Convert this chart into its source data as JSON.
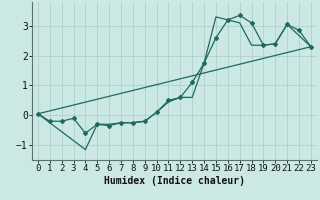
{
  "xlabel": "Humidex (Indice chaleur)",
  "background_color": "#cce8e4",
  "grid_color": "#aaccca",
  "line_color": "#1a6b60",
  "xlim": [
    -0.5,
    23.5
  ],
  "ylim": [
    -1.5,
    3.8
  ],
  "yticks": [
    -1,
    0,
    1,
    2,
    3
  ],
  "xticks": [
    0,
    1,
    2,
    3,
    4,
    5,
    6,
    7,
    8,
    9,
    10,
    11,
    12,
    13,
    14,
    15,
    16,
    17,
    18,
    19,
    20,
    21,
    22,
    23
  ],
  "series1_x": [
    0,
    1,
    2,
    3,
    4,
    5,
    6,
    7,
    8,
    9,
    10,
    11,
    12,
    13,
    14,
    15,
    16,
    17,
    18,
    19,
    20,
    21,
    22,
    23
  ],
  "series1_y": [
    0.05,
    -0.2,
    -0.2,
    -0.1,
    -0.6,
    -0.3,
    -0.35,
    -0.25,
    -0.25,
    -0.2,
    0.1,
    0.5,
    0.6,
    1.1,
    1.75,
    2.6,
    3.2,
    3.35,
    3.1,
    2.35,
    2.4,
    3.05,
    2.85,
    2.3
  ],
  "series2_x": [
    0,
    4,
    5,
    6,
    7,
    8,
    9,
    10,
    11,
    12,
    13,
    14,
    15,
    17,
    18,
    19,
    20,
    21,
    23
  ],
  "series2_y": [
    0.05,
    -1.15,
    -0.3,
    -0.3,
    -0.25,
    -0.25,
    -0.2,
    0.1,
    0.45,
    0.6,
    0.6,
    1.75,
    3.3,
    3.1,
    2.35,
    2.35,
    2.4,
    3.05,
    2.3
  ],
  "series3_x": [
    0,
    23
  ],
  "series3_y": [
    0.05,
    2.3
  ],
  "xlabel_fontsize": 7,
  "tick_fontsize": 6.5
}
